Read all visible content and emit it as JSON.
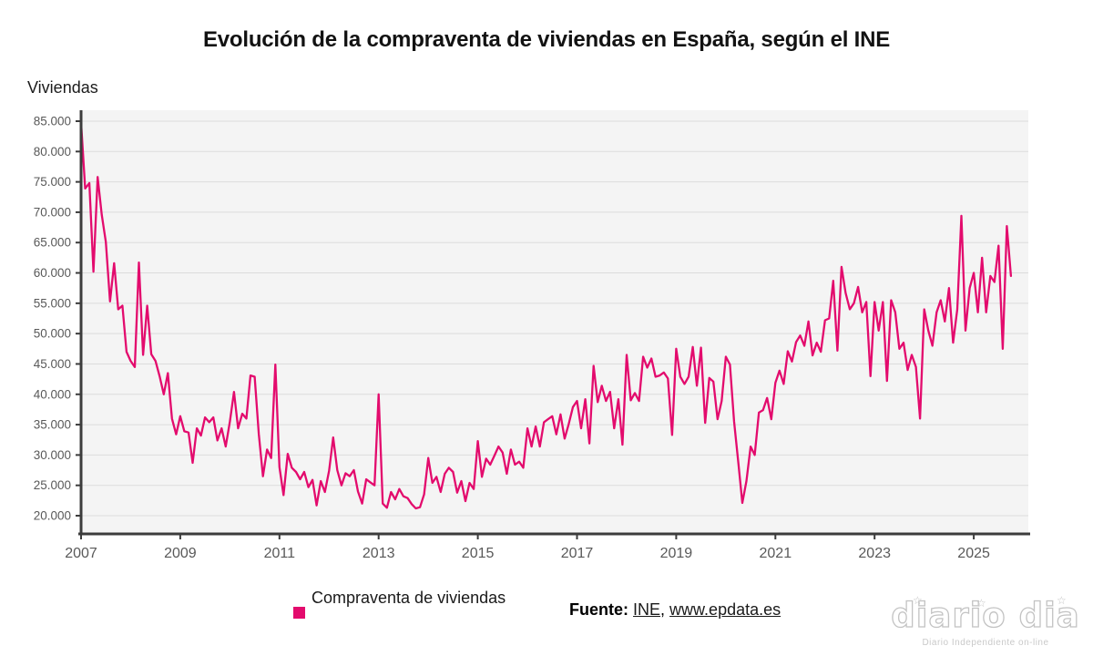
{
  "title": "Evolución de la compraventa de viviendas en España, según el INE",
  "y_axis_label": "Viviendas",
  "legend": {
    "label": "Compraventa de viviendas"
  },
  "source": {
    "prefix": "Fuente:",
    "link1": "INE",
    "separator": ", ",
    "link2": "www.epdata.es"
  },
  "logo": {
    "text": "diario dia",
    "tagline": "Diario Independiente on-line",
    "star": "☆"
  },
  "colors": {
    "line": "#e30b6d",
    "plot_bg": "#f4f4f4",
    "grid": "#dcdcdc",
    "axis": "#3c3c3c",
    "tick_text": "#595959"
  },
  "chart_data": {
    "type": "line",
    "title": "Evolución de la compraventa de viviendas en España, según el INE",
    "xlabel": "",
    "ylabel": "Viviendas",
    "frequency": "monthly",
    "start": "2007-01",
    "end": "2025-10",
    "ylim": [
      20000,
      85000
    ],
    "grid": true,
    "legend_position": "bottom",
    "x_tick_years": [
      2007,
      2009,
      2011,
      2013,
      2015,
      2017,
      2019,
      2021,
      2023,
      2025
    ],
    "y_ticks": [
      20000,
      25000,
      30000,
      35000,
      40000,
      45000,
      50000,
      55000,
      60000,
      65000,
      70000,
      75000,
      80000,
      85000
    ],
    "y_tick_labels": [
      "20.000",
      "25.000",
      "30.000",
      "35.000",
      "40.000",
      "45.000",
      "50.000",
      "55.000",
      "60.000",
      "65.000",
      "70.000",
      "75.000",
      "80.000",
      "85.000"
    ],
    "series": [
      {
        "name": "Compraventa de viviendas",
        "color": "#e30b6d",
        "values": [
          84800,
          73900,
          74800,
          60200,
          75800,
          69600,
          65100,
          55300,
          61600,
          54000,
          54600,
          47000,
          45500,
          44500,
          61700,
          46500,
          54600,
          46600,
          45500,
          43000,
          40000,
          43500,
          36000,
          33400,
          36400,
          33900,
          33700,
          28700,
          34400,
          33200,
          36200,
          35400,
          36200,
          32400,
          34400,
          31400,
          35500,
          40400,
          34400,
          36800,
          36000,
          43100,
          42900,
          33500,
          26500,
          30900,
          29500,
          44900,
          28000,
          23400,
          30200,
          27900,
          27200,
          26000,
          27200,
          24700,
          25900,
          21700,
          25700,
          23900,
          27400,
          32900,
          27500,
          25000,
          27000,
          26500,
          27500,
          24000,
          22000,
          26000,
          25500,
          25000,
          40000,
          22000,
          21300,
          23900,
          22700,
          24400,
          23200,
          22900,
          21900,
          21200,
          21400,
          23500,
          29500,
          25400,
          26400,
          23900,
          26900,
          27900,
          27200,
          23800,
          25700,
          22400,
          25400,
          24400,
          32300,
          26400,
          29400,
          28400,
          29900,
          31400,
          30400,
          26900,
          30900,
          28400,
          28900,
          27900,
          34400,
          31400,
          34700,
          31400,
          35400,
          35900,
          36400,
          33400,
          36700,
          32700,
          35100,
          37900,
          38900,
          34400,
          39200,
          31900,
          44700,
          38700,
          41400,
          38900,
          40400,
          34400,
          39200,
          31700,
          46500,
          39000,
          40200,
          38900,
          46200,
          44400,
          45900,
          42900,
          43100,
          43600,
          42600,
          33300,
          47500,
          42900,
          41700,
          42900,
          47800,
          41400,
          47700,
          35300,
          42700,
          42100,
          35900,
          38900,
          46200,
          44900,
          35600,
          28900,
          22100,
          25700,
          31400,
          30000,
          37000,
          37400,
          39400,
          35900,
          41900,
          43900,
          41700,
          47100,
          45400,
          48600,
          49700,
          48000,
          52000,
          46400,
          48500,
          47000,
          52200,
          52500,
          58700,
          47200,
          61000,
          56700,
          54000,
          55000,
          57700,
          53500,
          55200,
          43000,
          55200,
          50500,
          55200,
          42200,
          55500,
          53500,
          47500,
          48500,
          44000,
          46500,
          44500,
          36000,
          54000,
          50500,
          48000,
          53500,
          55500,
          52000,
          57500,
          48500,
          54000,
          69400,
          50500,
          57500,
          60000,
          53500,
          62500,
          53500,
          59500,
          58500,
          64500,
          47500,
          67700,
          59500
        ]
      }
    ]
  }
}
